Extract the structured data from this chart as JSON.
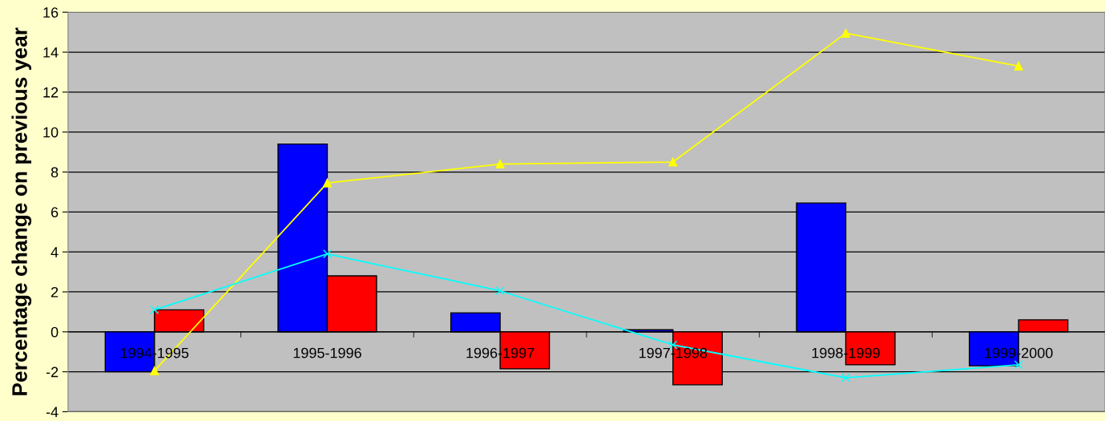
{
  "chart_data": {
    "type": "bar",
    "ylabel": "Percentage change on previous year",
    "categories": [
      "1994-1995",
      "1995-1996",
      "1996-1997",
      "1997-1998",
      "1998-1999",
      "1999-2000"
    ],
    "series": [
      {
        "color": "#0000ff",
        "values": [
          -2.0,
          9.4,
          0.95,
          0.1,
          6.45,
          -1.7
        ]
      },
      {
        "color": "#ff0000",
        "values": [
          1.1,
          2.8,
          -1.85,
          -2.65,
          -1.65,
          0.6
        ]
      },
      {
        "type": "line",
        "color": "#ffff00",
        "marker": "triangle",
        "values": [
          -1.95,
          7.45,
          8.4,
          8.5,
          14.95,
          13.3
        ]
      },
      {
        "type": "line",
        "color": "#00ffff",
        "marker": "cross",
        "values": [
          1.1,
          3.9,
          2.05,
          -0.65,
          -2.3,
          -1.65
        ]
      }
    ],
    "ylim": [
      -4,
      16
    ],
    "yticks": [
      -4,
      -2,
      0,
      2,
      4,
      6,
      8,
      10,
      12,
      14,
      16
    ],
    "grid": "y",
    "legend": false
  }
}
